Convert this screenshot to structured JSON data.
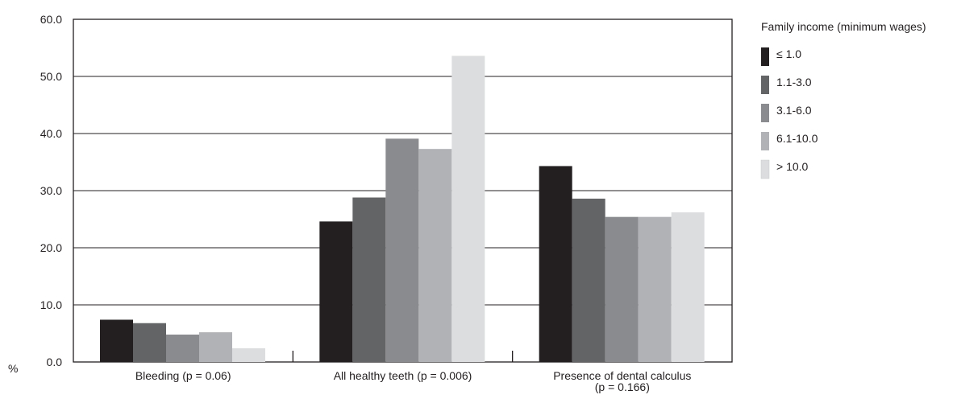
{
  "chart_data": {
    "type": "bar",
    "ylabel": "%",
    "ylim": [
      0,
      60
    ],
    "yticks": [
      "0.0",
      "10.0",
      "20.0",
      "30.0",
      "40.0",
      "50.0",
      "60.0"
    ],
    "ytick_values": [
      0,
      10,
      20,
      30,
      40,
      50,
      60
    ],
    "grid": true,
    "legend_position": "right",
    "legend_title": "Family income (minimum wages)",
    "categories": [
      [
        "Bleeding (p = 0.06)"
      ],
      [
        "All healthy teeth (p = 0.006)"
      ],
      [
        "Presence of dental calculus",
        "(p = 0.166)"
      ]
    ],
    "series": [
      {
        "name": "≤ 1.0",
        "color": "#231f20",
        "values": [
          7.4,
          24.6,
          34.3
        ]
      },
      {
        "name": "1.1-3.0",
        "color": "#636466",
        "values": [
          6.8,
          28.8,
          28.6
        ]
      },
      {
        "name": "3.1-6.0",
        "color": "#8a8b8e",
        "values": [
          4.8,
          39.1,
          25.4
        ]
      },
      {
        "name": "6.1-10.0",
        "color": "#b1b2b5",
        "values": [
          5.2,
          37.3,
          25.4
        ]
      },
      {
        "name": "> 10.0",
        "color": "#dcdddf",
        "values": [
          2.4,
          53.6,
          26.2
        ]
      }
    ]
  }
}
